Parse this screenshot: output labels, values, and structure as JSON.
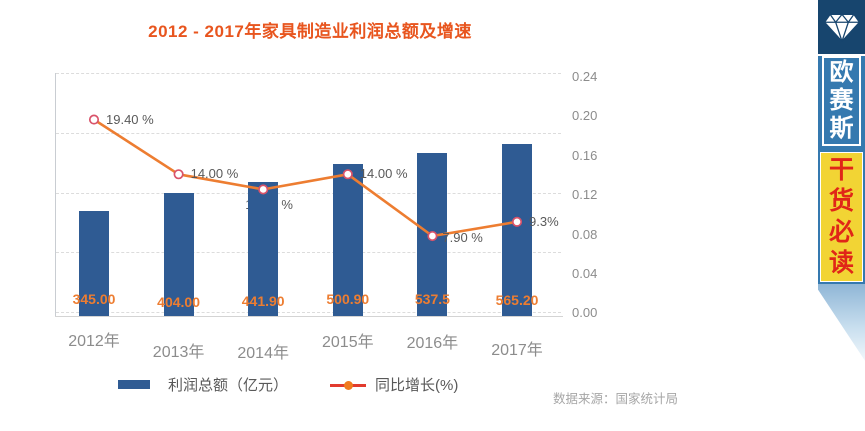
{
  "title": {
    "text": "2012 - 2017年家具制造业利润总额及增速"
  },
  "chart_data": {
    "type": "combo-bar-line",
    "categories": [
      "2012年",
      "2013年",
      "2014年",
      "2015年",
      "2016年",
      "2017年"
    ],
    "series": [
      {
        "name": "利润总额（亿元）",
        "type": "bar",
        "values": [
          345.0,
          404.0,
          441.9,
          500.9,
          537.5,
          565.2
        ],
        "value_labels": [
          "345.00",
          "404.00",
          "441.90",
          "500.90",
          "537.5",
          "565.20"
        ],
        "color": "#2f5b93",
        "axis": "left"
      },
      {
        "name": "同比增长(%)",
        "type": "line",
        "values_percent": [
          19.4,
          14.0,
          12.5,
          14.0,
          7.9,
          9.3
        ],
        "point_labels": [
          "19.40 %",
          "14.00 %",
          "12.50 %",
          "14.00 %",
          "7.90 %",
          "9.3%"
        ],
        "color": "#ed7d31",
        "marker_ring_color": "#d9536a",
        "marker_fill": "#ffffff",
        "axis": "right"
      }
    ],
    "left_axis": {
      "min": 0,
      "max": 800,
      "labels_visible": false
    },
    "right_axis": {
      "min": 0,
      "max": 0.24,
      "ticks": [
        "0.24",
        "0.20",
        "0.16",
        "0.12",
        "0.08",
        "0.04",
        "0.00"
      ]
    },
    "grid": {
      "horizontal": true,
      "style": "dashed",
      "legend_position": "bottom"
    }
  },
  "legend": {
    "items": [
      {
        "label": "利润总额（亿元）",
        "swatch": "bar",
        "color": "#2f5b93"
      },
      {
        "label": "同比增长(%)",
        "swatch": "line",
        "line_color": "#e23b2e",
        "dot_color": "#f07b1e"
      }
    ]
  },
  "source": {
    "text": "数据来源：国家统计局"
  },
  "banner": {
    "icon": "diamond-icon",
    "brand": "欧赛斯",
    "brand_chars": [
      "欧",
      "赛",
      "斯"
    ],
    "tagline": "干货必读",
    "tagline_chars": [
      "干",
      "货",
      "必",
      "读"
    ],
    "colors": {
      "top_bg": "#17456e",
      "ribbon_bg": "#3579af",
      "tag_bg": "#f2d434",
      "tag_text": "#e02618",
      "brand_text": "#ffffff"
    }
  }
}
